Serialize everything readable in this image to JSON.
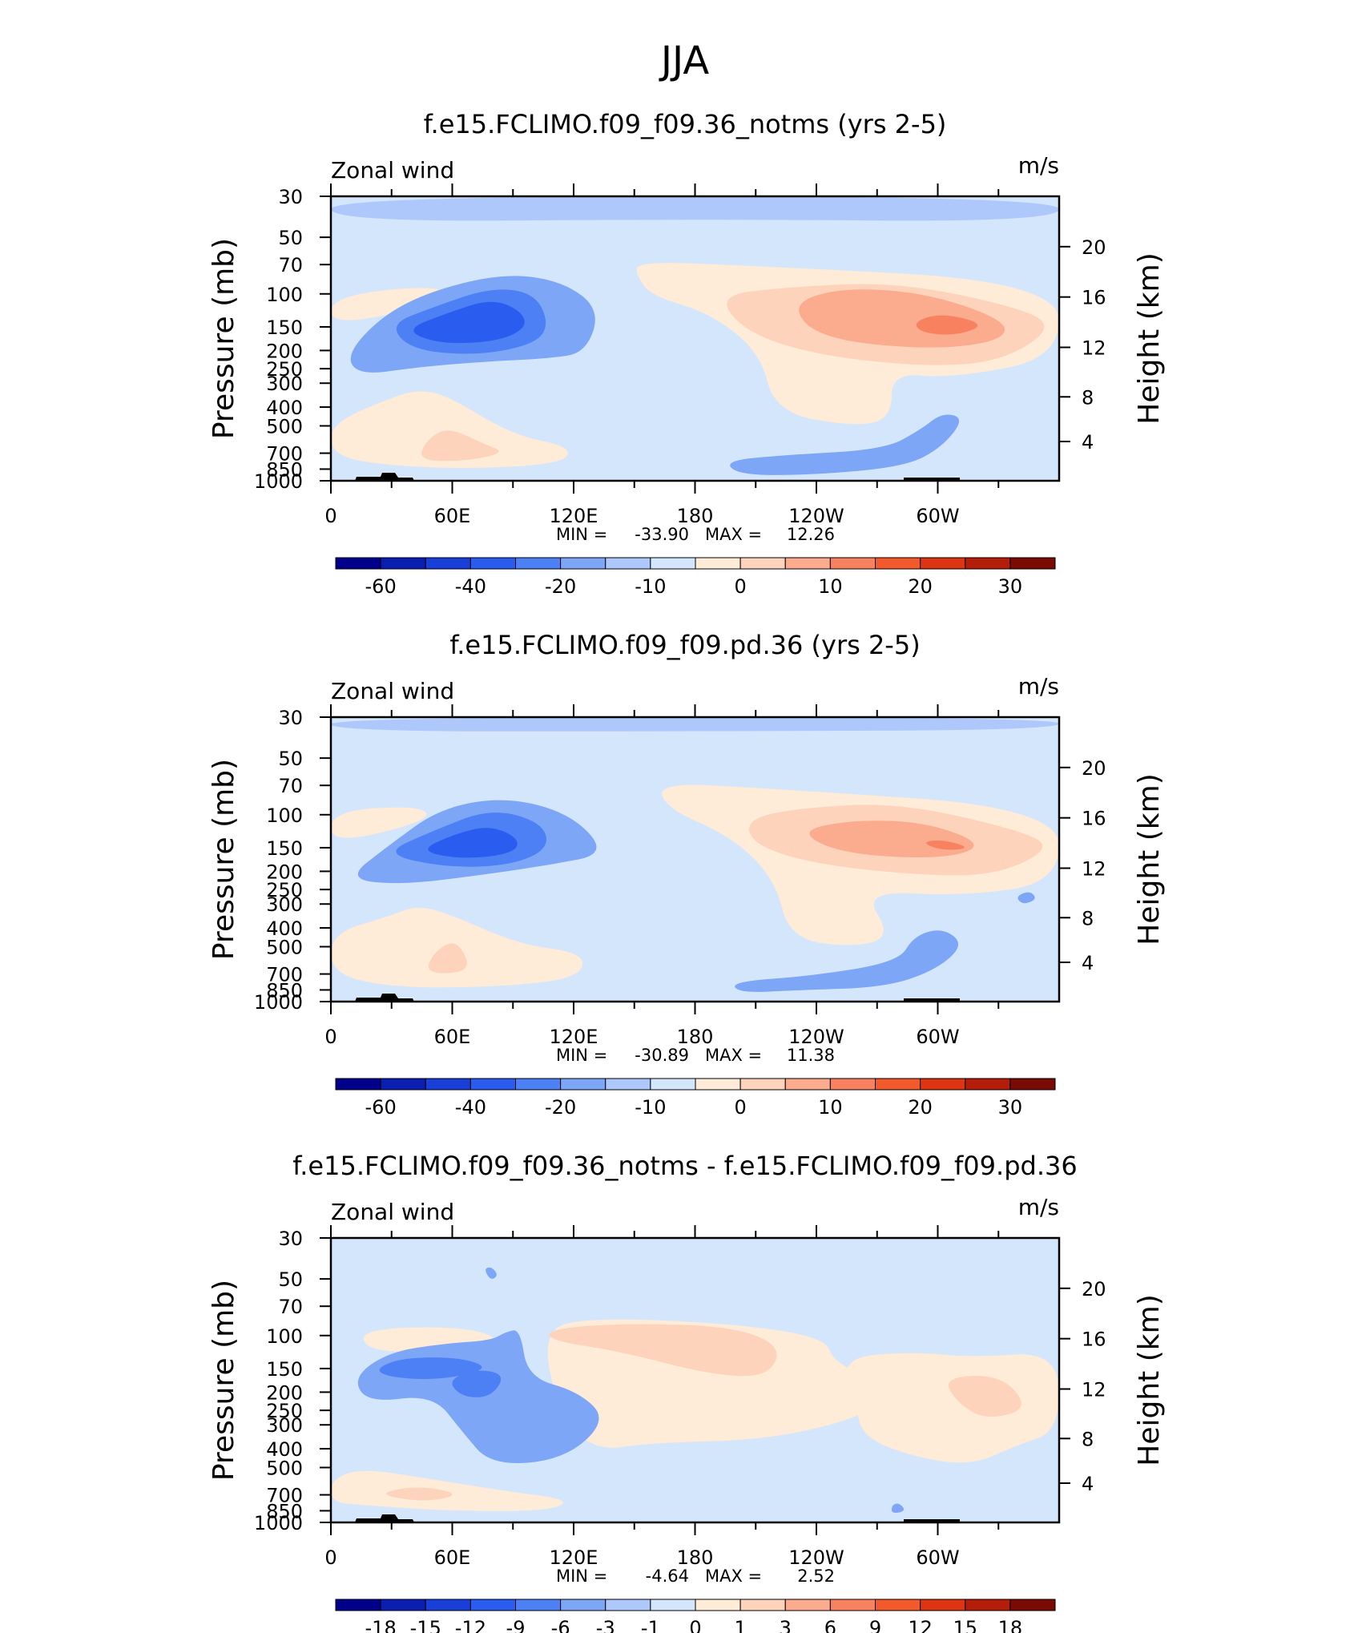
{
  "title": "JJA",
  "chart_data": [
    {
      "type": "contour",
      "title": "f.e15.FCLIMO.f09_f09.36_notms (yrs 2-5)",
      "variable": "Zonal wind",
      "units": "m/s",
      "ylabel_left": "Pressure (mb)",
      "ylabel_right": "Height (km)",
      "x_ticks": [
        "0",
        "60E",
        "120E",
        "180",
        "120W",
        "60W"
      ],
      "p_ticks": [
        "30",
        "50",
        "70",
        "100",
        "150",
        "200",
        "250",
        "300",
        "400",
        "500",
        "700",
        "850",
        "1000"
      ],
      "h_ticks": [
        "20",
        "16",
        "12",
        "8",
        "4"
      ],
      "min_label": "MIN =",
      "min": "-33.90",
      "max_label": "MAX =",
      "max": "12.26",
      "colorbar_labels": [
        "-60",
        "-40",
        "-20",
        "-10",
        "0",
        "10",
        "20",
        "30"
      ],
      "features": [
        {
          "name": "upper-jet-negative",
          "lon": 80,
          "p": 150,
          "peak": -33.9
        },
        {
          "name": "upper-jet-positive",
          "lon": 245,
          "p": 140,
          "peak": 12.26
        },
        {
          "name": "lower-positive",
          "lon": 70,
          "p": 700,
          "peak": 8
        }
      ]
    },
    {
      "type": "contour",
      "title": "f.e15.FCLIMO.f09_f09.pd.36 (yrs 2-5)",
      "variable": "Zonal wind",
      "units": "m/s",
      "ylabel_left": "Pressure (mb)",
      "ylabel_right": "Height (km)",
      "x_ticks": [
        "0",
        "60E",
        "120E",
        "180",
        "120W",
        "60W"
      ],
      "p_ticks": [
        "30",
        "50",
        "70",
        "100",
        "150",
        "200",
        "250",
        "300",
        "400",
        "500",
        "700",
        "850",
        "1000"
      ],
      "h_ticks": [
        "20",
        "16",
        "12",
        "8",
        "4"
      ],
      "min_label": "MIN =",
      "min": "-30.89",
      "max_label": "MAX =",
      "max": "11.38",
      "colorbar_labels": [
        "-60",
        "-40",
        "-20",
        "-10",
        "0",
        "10",
        "20",
        "30"
      ],
      "features": [
        {
          "name": "upper-jet-negative",
          "lon": 80,
          "p": 150,
          "peak": -30.89
        },
        {
          "name": "upper-jet-positive",
          "lon": 245,
          "p": 140,
          "peak": 11.38
        },
        {
          "name": "lower-positive",
          "lon": 60,
          "p": 650,
          "peak": 7
        }
      ]
    },
    {
      "type": "contour",
      "title": "f.e15.FCLIMO.f09_f09.36_notms - f.e15.FCLIMO.f09_f09.pd.36",
      "variable": "Zonal wind",
      "units": "m/s",
      "ylabel_left": "Pressure (mb)",
      "ylabel_right": "Height (km)",
      "x_ticks": [
        "0",
        "60E",
        "120E",
        "180",
        "120W",
        "60W"
      ],
      "p_ticks": [
        "30",
        "50",
        "70",
        "100",
        "150",
        "200",
        "250",
        "300",
        "400",
        "500",
        "700",
        "850",
        "1000"
      ],
      "h_ticks": [
        "20",
        "16",
        "12",
        "8",
        "4"
      ],
      "min_label": "MIN =",
      "min": "-4.64",
      "max_label": "MAX =",
      "max": "2.52",
      "colorbar_labels": [
        "-18",
        "-15",
        "-12",
        "-9",
        "-6",
        "-3",
        "-1",
        "0",
        "1",
        "3",
        "6",
        "9",
        "12",
        "15",
        "18"
      ],
      "features": [
        {
          "name": "diff-negative",
          "lon": 75,
          "p": 180,
          "peak": -4.64
        },
        {
          "name": "diff-positive",
          "lon": 180,
          "p": 120,
          "peak": 2.52
        }
      ]
    }
  ],
  "colorbar_colors": [
    "#00008b",
    "#0a1fb0",
    "#1a3fd8",
    "#2a5cf0",
    "#4d7ff5",
    "#7ea6f6",
    "#aec8fb",
    "#d4e6fc",
    "#feebd8",
    "#fdd3bb",
    "#fbab8e",
    "#f8825f",
    "#f25a2b",
    "#dd3512",
    "#b31d0a",
    "#7a0a04"
  ]
}
